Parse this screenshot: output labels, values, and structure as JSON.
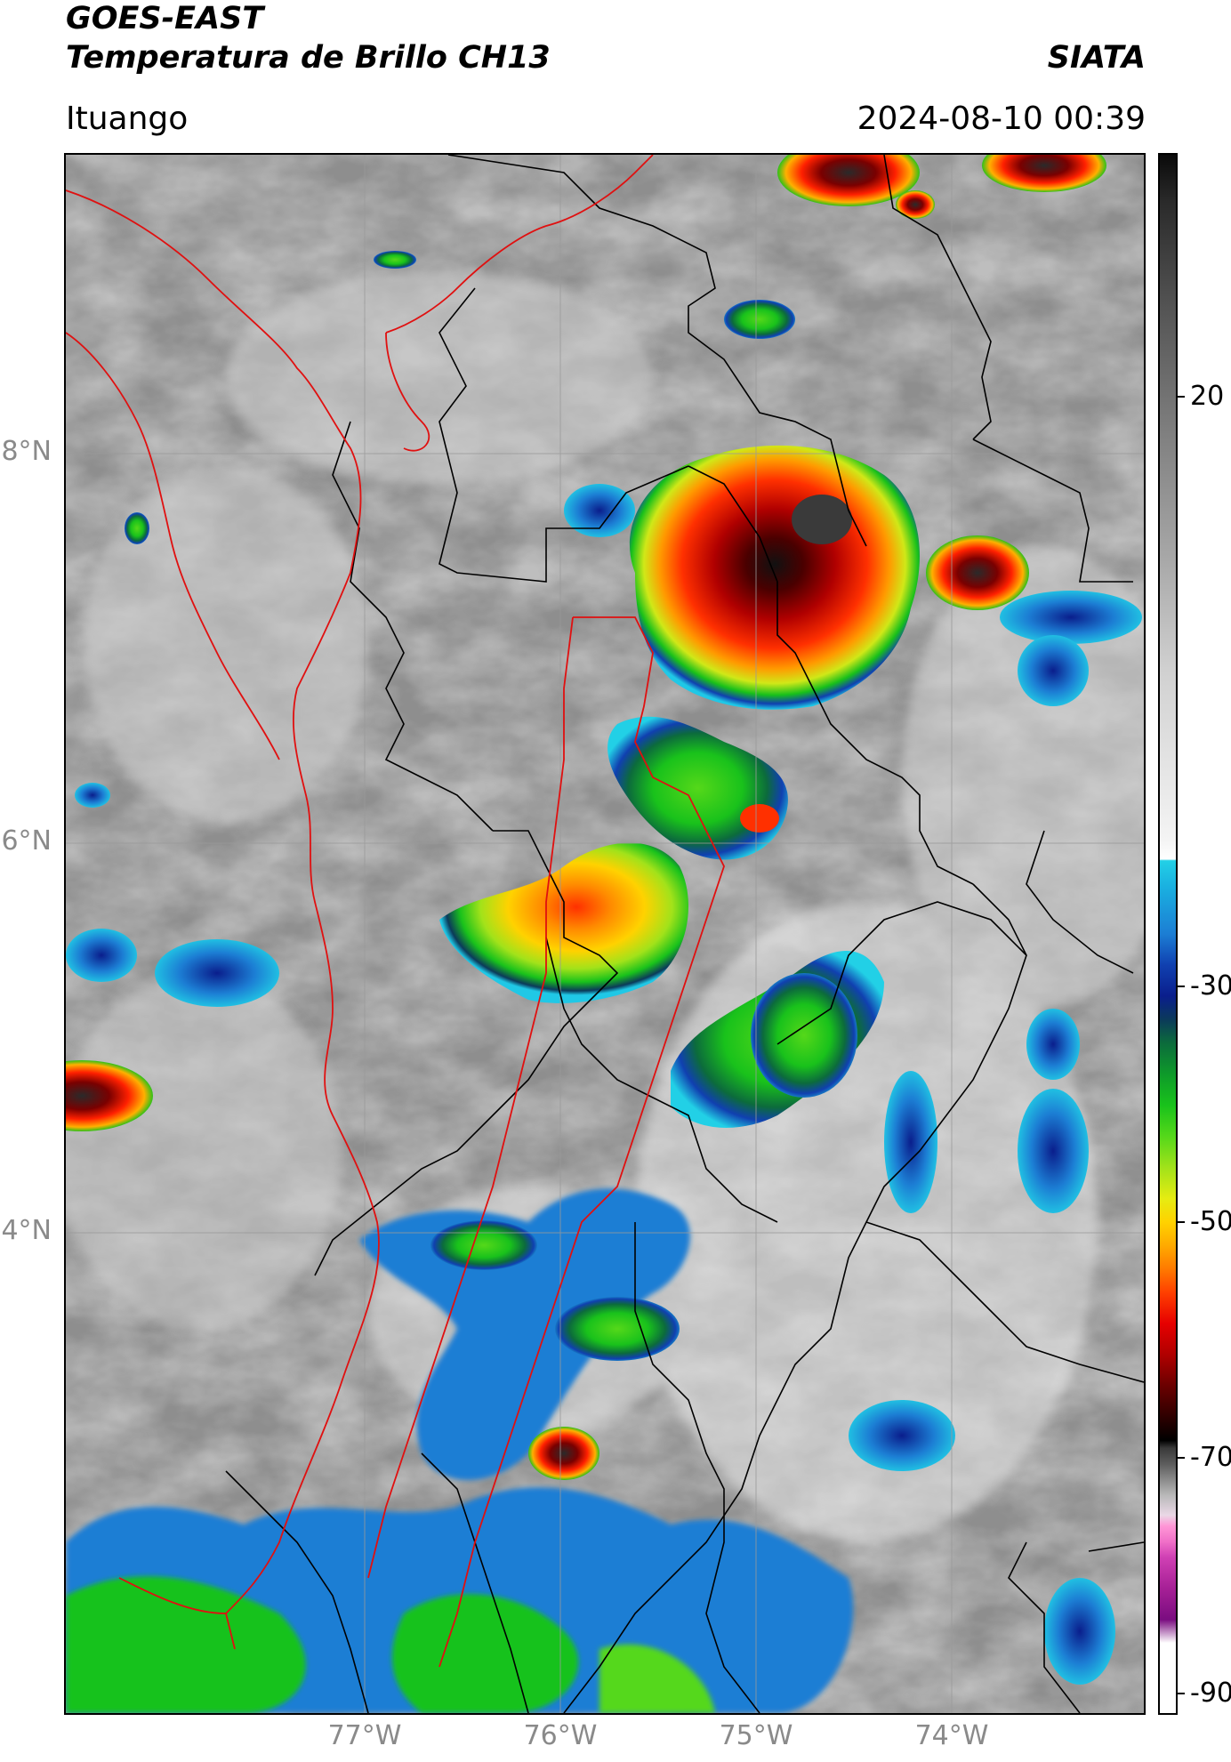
{
  "header": {
    "title_line1": "GOES-EAST",
    "title_line2": "Temperatura de Brillo CH13",
    "organization": "SIATA",
    "location": "Ituango",
    "datetime": "2024-08-10 00:39"
  },
  "map_axes": {
    "lat_ticks": [
      "8°N",
      "6°N",
      "4°N"
    ],
    "lon_ticks": [
      "77°W",
      "76°W",
      "75°W",
      "74°W"
    ]
  },
  "colorbar": {
    "ticks": [
      "20",
      "-30",
      "-50",
      "-70",
      "-90"
    ],
    "units_range": [
      -90,
      35
    ]
  },
  "colors": {
    "border_international": "#e01010",
    "border_departments": "#000000",
    "grid": "#9a9a9a"
  }
}
